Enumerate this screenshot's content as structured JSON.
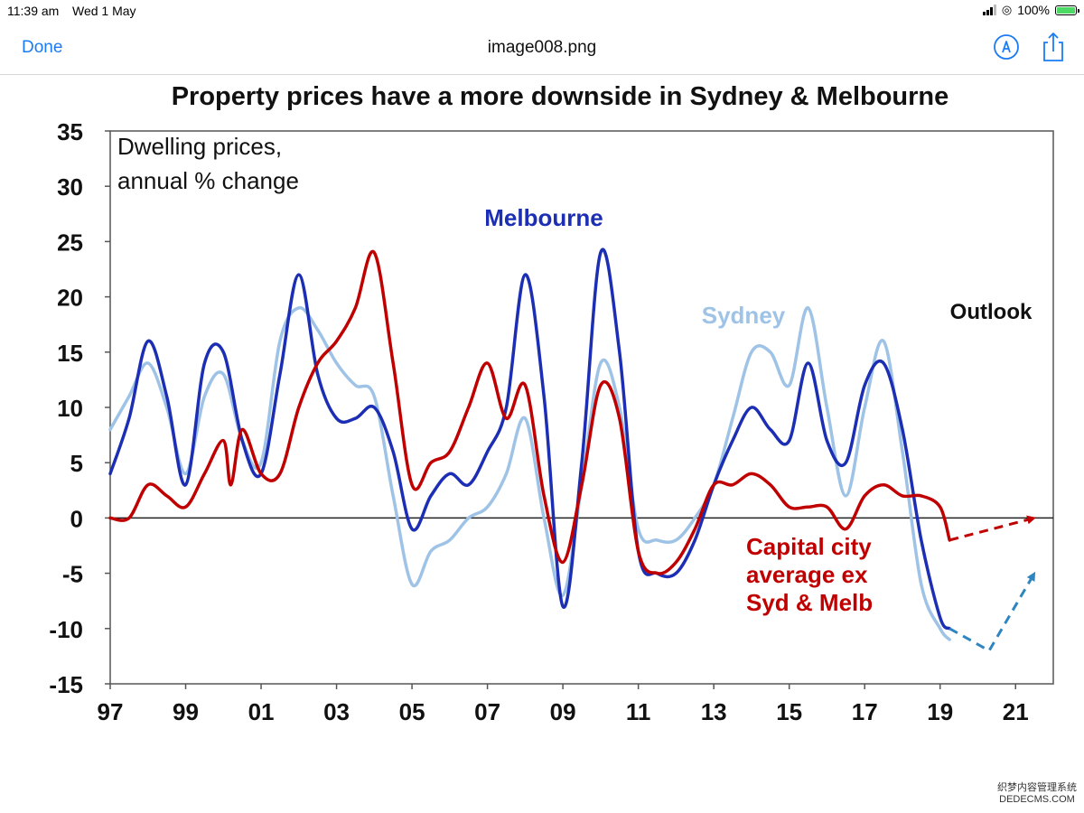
{
  "status_bar": {
    "time": "11:39 am",
    "date": "Wed 1 May",
    "battery": "100%"
  },
  "nav": {
    "done_label": "Done",
    "title": "image008.png",
    "markup_icon": "markup-pen-icon",
    "share_icon": "share-icon",
    "accent_color": "#1a7cf5"
  },
  "chart_data": {
    "type": "line",
    "title": "Property prices have a more downside in Sydney & Melbourne",
    "axis_note": "Dwelling prices,\nannual % change",
    "outlook_label": "Outlook",
    "ylim": [
      -15,
      35
    ],
    "xlim": [
      1997,
      2022
    ],
    "y_ticks": [
      "35",
      "30",
      "25",
      "20",
      "15",
      "10",
      "5",
      "0",
      "-5",
      "-10",
      "-15"
    ],
    "x_ticks": [
      "97",
      "99",
      "01",
      "03",
      "05",
      "07",
      "09",
      "11",
      "13",
      "15",
      "17",
      "19",
      "21"
    ],
    "grid": false,
    "series": [
      {
        "name": "Sydney",
        "color": "#9ec3e6",
        "x": [
          1997.0,
          1997.5,
          1998.0,
          1998.5,
          1999.0,
          1999.5,
          2000.0,
          2000.5,
          2001.0,
          2001.5,
          2002.0,
          2002.5,
          2003.0,
          2003.5,
          2004.0,
          2004.5,
          2005.0,
          2005.5,
          2006.0,
          2006.5,
          2007.0,
          2007.5,
          2008.0,
          2008.5,
          2009.0,
          2009.5,
          2010.0,
          2010.5,
          2011.0,
          2011.5,
          2012.0,
          2012.5,
          2013.0,
          2013.5,
          2014.0,
          2014.5,
          2015.0,
          2015.5,
          2016.0,
          2016.5,
          2017.0,
          2017.5,
          2018.0,
          2018.5,
          2019.0,
          2019.25
        ],
        "y": [
          8,
          11,
          14,
          10,
          4,
          11,
          13,
          7,
          5,
          16,
          19,
          17,
          14,
          12,
          11,
          2,
          -6,
          -3,
          -2,
          0,
          1,
          4,
          9,
          0,
          -7,
          3,
          14,
          10,
          -1,
          -2,
          -2,
          0,
          3,
          9,
          15,
          15,
          12,
          19,
          10,
          2,
          10,
          16,
          6,
          -6,
          -10,
          -11
        ]
      },
      {
        "name": "Melbourne",
        "color": "#1c2fb4",
        "x": [
          1997.0,
          1997.5,
          1998.0,
          1998.5,
          1999.0,
          1999.5,
          2000.0,
          2000.5,
          2001.0,
          2001.5,
          2002.0,
          2002.5,
          2003.0,
          2003.5,
          2004.0,
          2004.5,
          2005.0,
          2005.5,
          2006.0,
          2006.5,
          2007.0,
          2007.5,
          2008.0,
          2008.5,
          2009.0,
          2009.5,
          2010.0,
          2010.5,
          2011.0,
          2011.5,
          2012.0,
          2012.5,
          2013.0,
          2013.5,
          2014.0,
          2014.5,
          2015.0,
          2015.5,
          2016.0,
          2016.5,
          2017.0,
          2017.5,
          2018.0,
          2018.5,
          2019.0,
          2019.25
        ],
        "y": [
          4,
          9,
          16,
          11,
          3,
          14,
          15,
          7,
          4,
          13,
          22,
          13,
          9,
          9,
          10,
          6,
          -1,
          2,
          4,
          3,
          6,
          10,
          22,
          11,
          -8,
          5,
          24,
          15,
          -3,
          -5,
          -5,
          -2,
          3,
          7,
          10,
          8,
          7,
          14,
          7,
          5,
          12,
          14,
          8,
          -2,
          -9,
          -10
        ]
      },
      {
        "name": "Capital city average ex Syd & Melb",
        "color": "#c00000",
        "x": [
          1997.0,
          1997.5,
          1998.0,
          1998.5,
          1999.0,
          1999.5,
          2000.0,
          2000.2,
          2000.5,
          2001.0,
          2001.5,
          2002.0,
          2002.5,
          2003.0,
          2003.5,
          2004.0,
          2004.5,
          2005.0,
          2005.5,
          2006.0,
          2006.5,
          2007.0,
          2007.5,
          2008.0,
          2008.5,
          2009.0,
          2009.5,
          2010.0,
          2010.5,
          2011.0,
          2011.5,
          2012.0,
          2012.5,
          2013.0,
          2013.5,
          2014.0,
          2014.5,
          2015.0,
          2015.5,
          2016.0,
          2016.5,
          2017.0,
          2017.5,
          2018.0,
          2018.5,
          2019.0,
          2019.25
        ],
        "y": [
          0,
          0,
          3,
          2,
          1,
          4,
          7,
          3,
          8,
          4,
          4,
          10,
          14,
          16,
          19,
          24,
          14,
          3,
          5,
          6,
          10,
          14,
          9,
          12,
          2,
          -4,
          3,
          12,
          9,
          -3,
          -5,
          -4,
          -1,
          3,
          3,
          4,
          3,
          1,
          1,
          1,
          -1,
          2,
          3,
          2,
          2,
          1,
          -2
        ]
      }
    ],
    "outlook": [
      {
        "name": "Capital city average ex Syd & Melb",
        "color": "#c00000",
        "x": [
          2019.25,
          2021.5
        ],
        "y": [
          -2,
          0
        ]
      },
      {
        "name": "Sydney & Melbourne",
        "color": "#2e86c1",
        "x": [
          2019.25,
          2020.3,
          2021.5
        ],
        "y": [
          -10,
          -12,
          -5
        ]
      }
    ],
    "series_labels": [
      {
        "text": "Melbourne",
        "color": "#1c2fb4"
      },
      {
        "text": "Sydney",
        "color": "#9ec3e6"
      },
      {
        "text": "Capital city\naverage ex\nSyd & Melb",
        "color": "#c00000"
      }
    ]
  },
  "watermark": {
    "line1": "织梦内容管理系统",
    "line2": "DEDECMS.COM"
  }
}
